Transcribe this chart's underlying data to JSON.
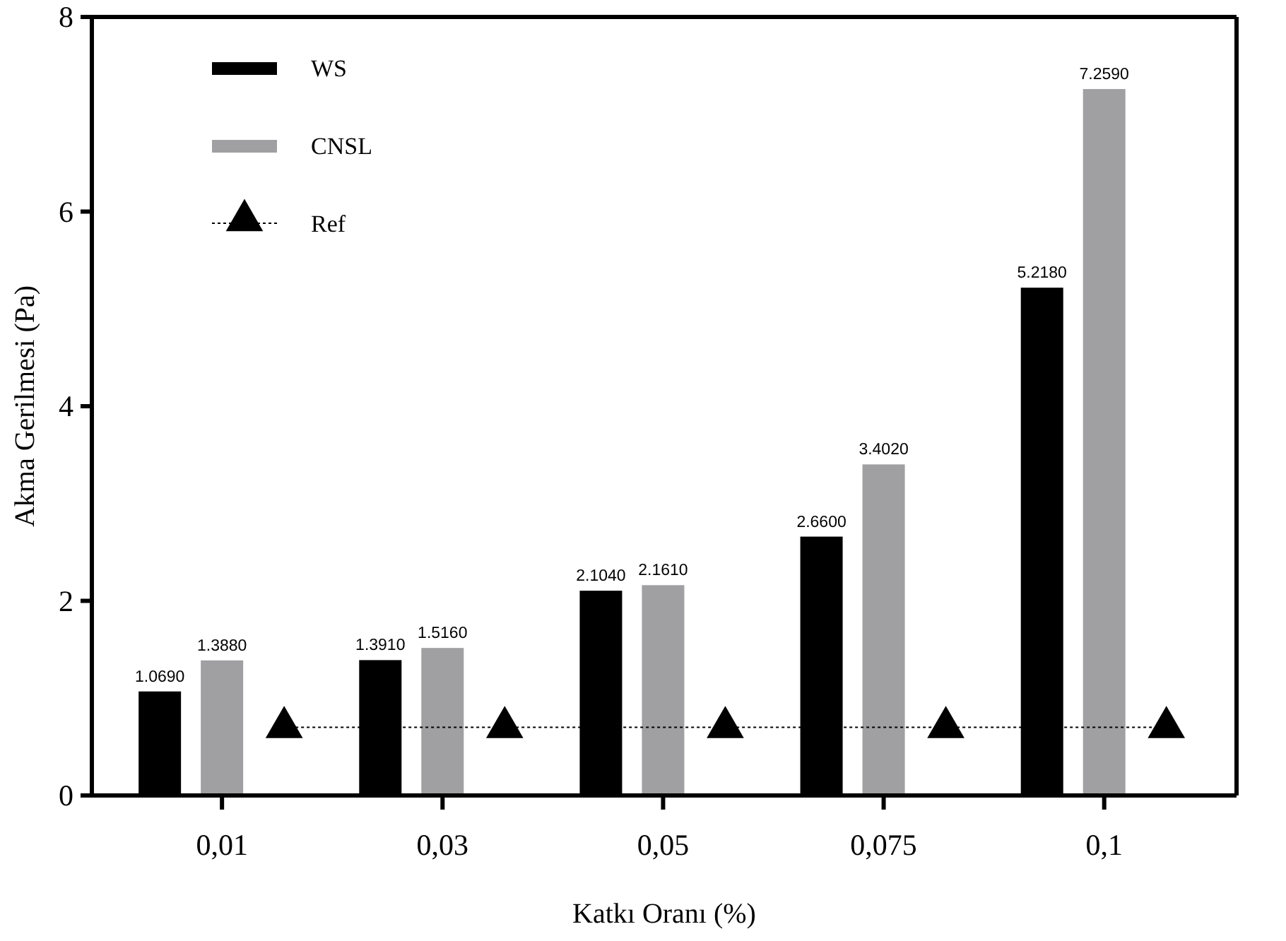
{
  "chart_data": {
    "type": "bar",
    "xlabel": "Katkı Oranı (%)",
    "ylabel": "Akma Gerilmesi (Pa)",
    "categories": [
      "0,01",
      "0,03",
      "0,05",
      "0,075",
      "0,1"
    ],
    "ylim": [
      0,
      8
    ],
    "yticks": [
      0,
      2,
      4,
      6,
      8
    ],
    "grid": false,
    "legend": "top left",
    "series": [
      {
        "name": "WS",
        "color": "#000000",
        "values": [
          1.069,
          1.391,
          2.104,
          2.66,
          5.218
        ],
        "value_labels": [
          "1.0690",
          "1.3910",
          "2.1040",
          "2.6600",
          "5.2180"
        ]
      },
      {
        "name": "CNSL",
        "color": "#a0a0a2",
        "values": [
          1.388,
          1.516,
          2.161,
          3.402,
          7.259
        ],
        "value_labels": [
          "1.3880",
          "1.5160",
          "2.1610",
          "3.4020",
          "7.2590"
        ]
      },
      {
        "name": "Ref",
        "type": "line",
        "color": "#000000",
        "marker": "triangle",
        "line_style": "dotted",
        "values": [
          0.7,
          0.7,
          0.7,
          0.7,
          0.7
        ]
      }
    ]
  }
}
